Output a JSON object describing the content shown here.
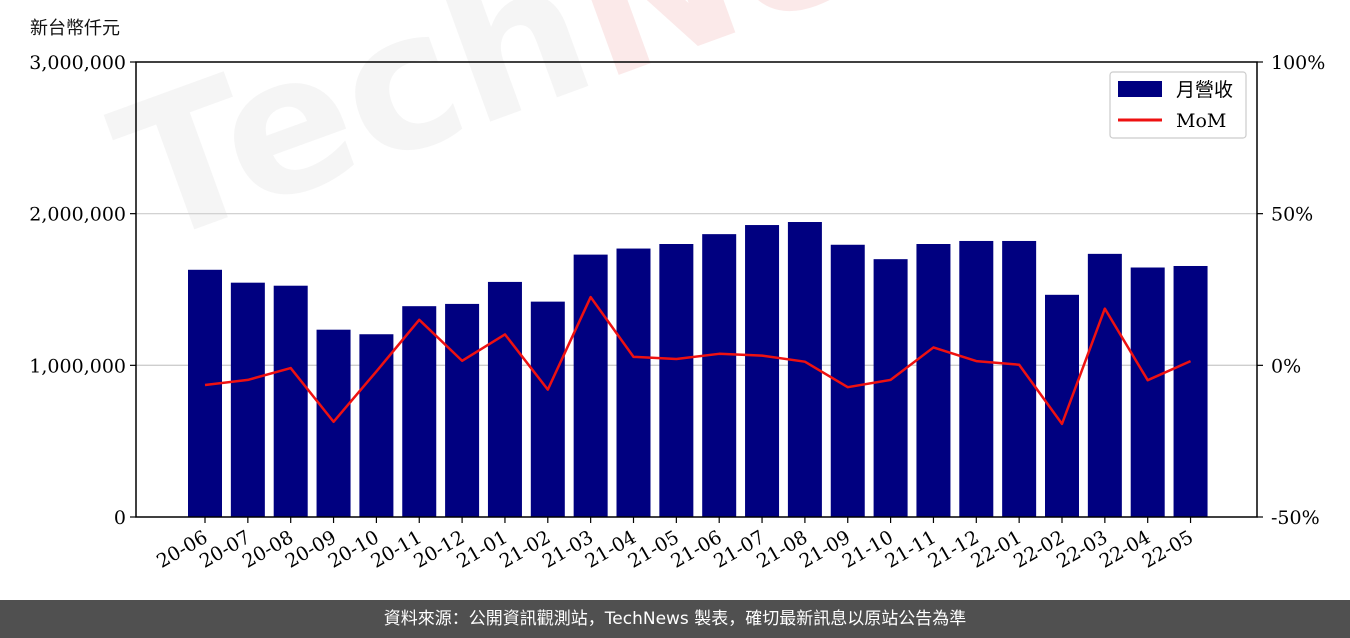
{
  "unit_label": "新台幣仟元",
  "footer_text": "資料來源：公開資訊觀測站，TechNews 製表，確切最新訊息以原站公告為準",
  "watermark": {
    "prefix": "Tech",
    "highlight": "News"
  },
  "colors": {
    "bar": "#000080",
    "line": "#ee1111",
    "grid": "#cccccc",
    "footer_bg": "#505050"
  },
  "chart_data": {
    "type": "bar",
    "categories": [
      "20-06",
      "20-07",
      "20-08",
      "20-09",
      "20-10",
      "20-11",
      "20-12",
      "21-01",
      "21-02",
      "21-03",
      "21-04",
      "21-05",
      "21-06",
      "21-07",
      "21-08",
      "21-09",
      "21-10",
      "21-11",
      "21-12",
      "22-01",
      "22-02",
      "22-03",
      "22-04",
      "22-05"
    ],
    "series": [
      {
        "name": "月營收",
        "axis": "left",
        "kind": "bar",
        "values": [
          1630000,
          1545000,
          1525000,
          1235000,
          1205000,
          1390000,
          1405000,
          1550000,
          1420000,
          1730000,
          1770000,
          1800000,
          1865000,
          1925000,
          1945000,
          1795000,
          1700000,
          1800000,
          1820000,
          1820000,
          1465000,
          1735000,
          1645000,
          1655000
        ]
      },
      {
        "name": "MoM",
        "axis": "right",
        "kind": "line",
        "values": [
          -6.5,
          -4.8,
          -0.9,
          -18.6,
          -2.0,
          15.0,
          1.5,
          10.2,
          -8.0,
          22.5,
          2.8,
          2.1,
          3.8,
          3.2,
          1.2,
          -7.2,
          -4.8,
          5.9,
          1.4,
          0.2,
          -19.3,
          18.7,
          -4.9,
          1.4
        ]
      }
    ],
    "y_left": {
      "ylim": [
        0,
        3000000
      ],
      "ticks": [
        0,
        1000000,
        2000000,
        3000000
      ],
      "tick_labels": [
        "0",
        "1,000,000",
        "2,000,000",
        "3,000,000"
      ]
    },
    "y_right": {
      "ylim": [
        -50,
        100
      ],
      "ticks": [
        -50,
        0,
        50,
        100
      ],
      "tick_labels": [
        "-50%",
        "0%",
        "50%",
        "100%"
      ]
    },
    "grid": "horizontal",
    "legend_position": "top-right"
  }
}
